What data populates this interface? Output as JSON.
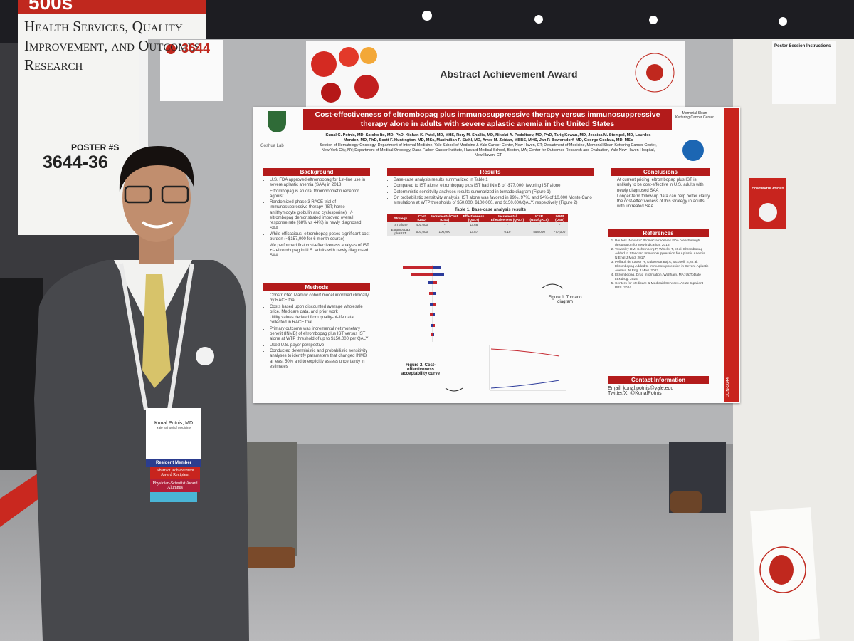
{
  "banner": {
    "number": "500s",
    "title": "Health Services, Quality Improvement, and Outcomes Research",
    "poster_label": "POSTER #S",
    "poster_numbers": "3644-36"
  },
  "number_card": "3644",
  "award": "Abstract Achievement Award",
  "instructions": "Poster Session Instructions",
  "poster": {
    "title": "Cost-effectiveness of eltrombopag plus immunosuppressive therapy versus immunosuppressive therapy alone in adults with severe aplastic anemia in the United States",
    "authors": "Kunal C. Potnis, MD, Satoko Ito, MD, PhD, Kishan K. Patel, MD, MHS, Rory M. Shallis, MD, Nikolai A. Podoltsev, MD, PhD, Tariq Kewan, MD, Jessica M. Stempel, MD, Lourdes Mendez, MD, PhD, Scott F. Huntington, MD, MSc, Maximilian F. Stahl, MD, Amer M. Zeidan, MBBS, MHS, Jan P. Bewersdorf, MD, George Goshua, MD, MSc",
    "affiliations": "Section of Hematology-Oncology, Department of Internal Medicine, Yale School of Medicine & Yale Cancer Center, New Haven, CT; Department of Medicine, Memorial Sloan Kettering Cancer Center, New York City, NY; Department of Medical Oncology, Dana-Farber Cancer Institute, Harvard Medical School, Boston, MA; Center for Outcomes Research and Evaluation, Yale New Haven Hospital, New Haven, CT",
    "lab": "Goshua Lab",
    "partner": "Memorial Sloan Kettering Cancer Center",
    "code": "SUN-3644",
    "background": {
      "heading": "Background",
      "items": [
        "U.S. FDA approved eltrombopag for 1st-line use in severe aplastic anemia (SAA) in 2018",
        "Eltrombopag is an oral thrombopoietin receptor agonist",
        "Randomized phase 3 RACE trial of immunosuppressive therapy (IST; horse antithymocyte globulin and cyclosporine) +/- eltrombopag demonstrated improved overall response rate (68% vs 44%) in newly diagnosed SAA",
        "While efficacious, eltrombopag poses significant cost burden (~$157,000 for 6-month course)",
        "We performed first cost-effectiveness analysis of IST +/- eltrombopag in U.S. adults with newly diagnosed SAA"
      ]
    },
    "methods": {
      "heading": "Methods",
      "items": [
        "Constructed Markov cohort model informed clinically by RACE trial",
        "Costs based upon discounted average wholesale price, Medicare data, and prior work",
        "Utility values derived from quality-of-life data collected in RACE trial",
        "Primary outcome was incremental net monetary benefit (INMB) of eltrombopag plus IST versus IST alone at WTP threshold of up to $150,000 per QALY",
        "Used U.S. payer perspective",
        "Conducted deterministic and probabilistic sensitivity analyses to identify parameters that changed INMB at least 50% and to explicitly assess uncertainty in estimates"
      ]
    },
    "results": {
      "heading": "Results",
      "items": [
        "Base-case analysis results summarized in Table 1",
        "Compared to IST alone, eltrombopag plus IST had INMB of -$77,000, favoring IST alone",
        "Deterministic sensitivity analyses results summarized in tornado diagram (Figure 1)",
        "On probabilistic sensitivity analysis, IST alone was favored in 99%, 97%, and 94% of 10,000 Monte Carlo simulations at WTP thresholds of $50,000, $100,000, and $150,000/QALY, respectively (Figure 2)"
      ],
      "table": {
        "title": "Table 1. Base-case analysis results",
        "header": [
          "Strategy",
          "Cost (USD)",
          "Incremental Cost (USD)",
          "Effectiveness (QALY)",
          "Incremental Effectiveness (QALY)",
          "ICER (USD/QALY)",
          "INMB (USD)"
        ],
        "rows": [
          [
            "IST alone",
            "401,000",
            "-",
            "13.68",
            "-",
            "-",
            "-"
          ],
          [
            "Eltrombopag plus IST",
            "507,000",
            "106,000",
            "13.87",
            "0.19",
            "558,000",
            "-77,000"
          ]
        ]
      },
      "figure1": "Figure 1. Tornado diagram",
      "figure2": "Figure 2. Cost-effectiveness acceptability curve"
    },
    "conclusions": {
      "heading": "Conclusions",
      "items": [
        "At current pricing, eltrombopag plus IST is unlikely to be cost-effective in U.S. adults with newly diagnosed SAA",
        "Longer-term follow-up data can help better clarify the cost-effectiveness of this strategy in adults with untreated SAA"
      ]
    },
    "references": {
      "heading": "References",
      "items": [
        "Reuters. Novartis' Promacta receives FDA breakthrough designation for new indication. 2018.",
        "Townsley DM, Scheinberg P, Winkler T, et al. Eltrombopag Added to Standard Immunosuppression for Aplastic Anemia. N Engl J Med. 2017.",
        "Peffault de Latour R, Kulasekararaj A, Iacobelli S, et al. Eltrombopag Added to Immunosuppression in Severe Aplastic Anemia. N Engl J Med. 2022.",
        "Eltrombopag. Drug Information. Waltham, MA: UpToDate Lexidrug. 2024.",
        "Centers for Medicare & Medicaid Services. Acute Inpatient PPS. 2024."
      ]
    },
    "contact": {
      "heading": "Contact Information",
      "email": "Email: kunal.potnis@yale.edu",
      "twitter": "Twitter/X: @KunalPotnis"
    }
  },
  "badge": {
    "name": "Kunal Potnis, MD",
    "institution": "Yale School of Medicine",
    "member": "Resident Member",
    "ribbon1": "Abstract Achievement Award Recipient",
    "ribbon2": "Physician-Scientist Award Alumnus"
  },
  "congratulations": "CONGRATULATIONS"
}
